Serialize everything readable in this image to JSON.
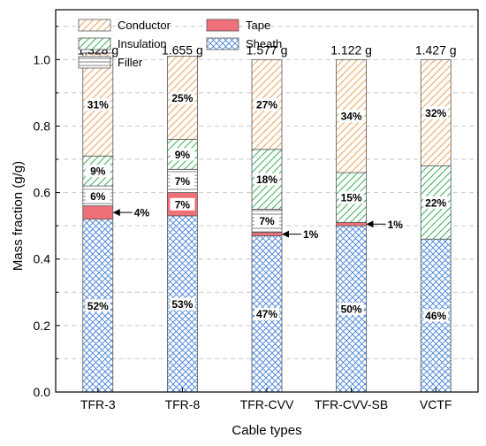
{
  "chart_data": {
    "type": "bar",
    "stacked": true,
    "categories": [
      "TFR-3",
      "TFR-8",
      "TFR-CVV",
      "TFR-CVV-SB",
      "VCTF"
    ],
    "category_masses": [
      "1.328 g",
      "1.655 g",
      "1.577 g",
      "1.122 g",
      "1.427 g"
    ],
    "xlabel": "Cable types",
    "ylabel": "Mass fraction (g/g)",
    "ylim": [
      0,
      1.15
    ],
    "yticks": [
      "0.0",
      "0.2",
      "0.4",
      "0.6",
      "0.8",
      "1.0"
    ],
    "grid": "horizontal dashed",
    "legend_position": "top-left",
    "series": [
      {
        "name": "Sheath",
        "values": [
          0.52,
          0.53,
          0.47,
          0.5,
          0.46
        ],
        "labels": [
          "52%",
          "53%",
          "47%",
          "50%",
          "46%"
        ],
        "color": "#3a7bd5",
        "pattern": "crosshatch"
      },
      {
        "name": "Tape",
        "values": [
          0.04,
          0.07,
          0.01,
          0.01,
          0.0
        ],
        "labels": [
          "4%",
          "7%",
          "1%",
          "1%",
          ""
        ],
        "color": "#e8636b",
        "pattern": "solid"
      },
      {
        "name": "Filler",
        "values": [
          0.06,
          0.07,
          0.07,
          0.0,
          0.0
        ],
        "labels": [
          "6%",
          "7%",
          "7%",
          "",
          ""
        ],
        "color": "#555555",
        "pattern": "horizontal-lines"
      },
      {
        "name": "Insulation",
        "values": [
          0.09,
          0.09,
          0.18,
          0.15,
          0.22
        ],
        "labels": [
          "9%",
          "9%",
          "18%",
          "15%",
          "22%"
        ],
        "color": "#3fae5a",
        "pattern": "diagonal-lines"
      },
      {
        "name": "Conductor",
        "values": [
          0.31,
          0.25,
          0.27,
          0.34,
          0.32
        ],
        "labels": [
          "31%",
          "25%",
          "27%",
          "34%",
          "32%"
        ],
        "color": "#f0a35e",
        "pattern": "diagonal-lines"
      }
    ],
    "arrow_annotations": [
      {
        "category": "TFR-3",
        "label": "4%"
      },
      {
        "category": "TFR-CVV",
        "label": "1%"
      },
      {
        "category": "TFR-CVV-SB",
        "label": "1%"
      }
    ]
  }
}
